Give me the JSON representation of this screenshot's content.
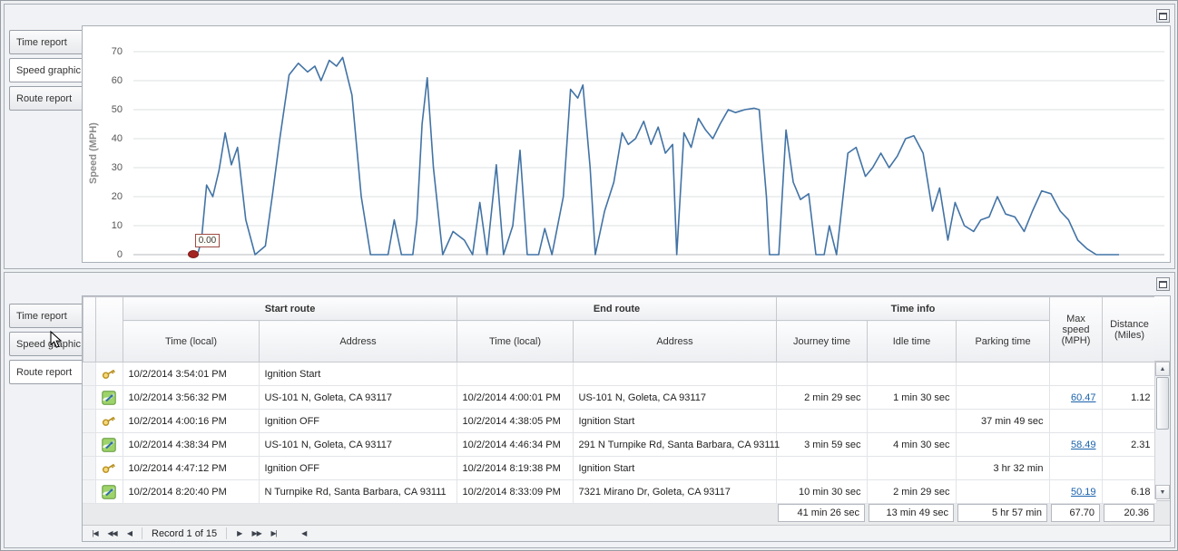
{
  "panels": {
    "top": {
      "tabs": [
        {
          "label": "Time report",
          "active": false
        },
        {
          "label": "Speed graphic",
          "active": true
        },
        {
          "label": "Route report",
          "active": false
        }
      ]
    },
    "bottom": {
      "tabs": [
        {
          "label": "Time report",
          "active": false
        },
        {
          "label": "Speed graphic",
          "active": false
        },
        {
          "label": "Route report",
          "active": true
        }
      ]
    }
  },
  "chart_data": {
    "type": "line",
    "title": "",
    "xlabel": "",
    "ylabel": "Speed (MPH)",
    "ylim": [
      0,
      70
    ],
    "yticks": [
      0,
      10,
      20,
      30,
      40,
      50,
      60,
      70
    ],
    "x_axis_visible": false,
    "grid": true,
    "legend": "none",
    "line_color": "#4273a5",
    "marker_color": "#a32421",
    "annotation": {
      "text": "0.00",
      "x": 5.7,
      "y": 0
    },
    "points": [
      [
        5.7,
        0
      ],
      [
        6.3,
        1
      ],
      [
        6.6,
        5
      ],
      [
        7.1,
        24
      ],
      [
        7.7,
        20
      ],
      [
        8.3,
        29
      ],
      [
        8.9,
        42
      ],
      [
        9.5,
        31
      ],
      [
        10.1,
        37
      ],
      [
        10.9,
        12
      ],
      [
        11.8,
        0
      ],
      [
        12.8,
        3
      ],
      [
        13.5,
        21
      ],
      [
        14.2,
        40
      ],
      [
        15.1,
        62
      ],
      [
        16.0,
        66
      ],
      [
        16.9,
        63
      ],
      [
        17.6,
        65
      ],
      [
        18.2,
        60
      ],
      [
        19.0,
        67
      ],
      [
        19.7,
        65
      ],
      [
        20.3,
        68
      ],
      [
        21.2,
        55
      ],
      [
        22.1,
        20
      ],
      [
        23.0,
        0
      ],
      [
        24.7,
        0
      ],
      [
        25.3,
        12
      ],
      [
        26.0,
        0
      ],
      [
        27.1,
        0
      ],
      [
        27.5,
        12
      ],
      [
        28.0,
        45
      ],
      [
        28.5,
        61
      ],
      [
        29.1,
        30
      ],
      [
        30.0,
        0
      ],
      [
        31.0,
        8
      ],
      [
        32.1,
        5
      ],
      [
        32.9,
        0
      ],
      [
        33.6,
        18
      ],
      [
        34.3,
        0
      ],
      [
        35.2,
        31
      ],
      [
        35.9,
        0
      ],
      [
        36.8,
        10
      ],
      [
        37.5,
        36
      ],
      [
        38.2,
        0
      ],
      [
        39.3,
        0
      ],
      [
        39.9,
        9
      ],
      [
        40.6,
        0
      ],
      [
        41.7,
        20
      ],
      [
        42.4,
        57
      ],
      [
        43.1,
        54
      ],
      [
        43.6,
        58.5
      ],
      [
        44.3,
        30
      ],
      [
        44.8,
        0
      ],
      [
        45.7,
        15
      ],
      [
        46.6,
        25
      ],
      [
        47.4,
        42
      ],
      [
        48.0,
        38
      ],
      [
        48.7,
        40
      ],
      [
        49.5,
        46
      ],
      [
        50.2,
        38
      ],
      [
        50.9,
        44
      ],
      [
        51.6,
        35
      ],
      [
        52.3,
        38
      ],
      [
        52.7,
        0
      ],
      [
        53.4,
        42
      ],
      [
        54.1,
        37
      ],
      [
        54.8,
        47
      ],
      [
        55.5,
        43
      ],
      [
        56.2,
        40
      ],
      [
        56.9,
        45
      ],
      [
        57.7,
        50
      ],
      [
        58.4,
        49
      ],
      [
        59.3,
        50
      ],
      [
        60.2,
        50.5
      ],
      [
        60.7,
        50
      ],
      [
        61.4,
        20
      ],
      [
        61.7,
        0
      ],
      [
        62.6,
        0
      ],
      [
        63.3,
        43
      ],
      [
        64.0,
        25
      ],
      [
        64.7,
        19
      ],
      [
        65.5,
        21
      ],
      [
        66.2,
        0
      ],
      [
        67.0,
        0
      ],
      [
        67.5,
        10
      ],
      [
        68.2,
        0
      ],
      [
        69.3,
        35
      ],
      [
        70.1,
        37
      ],
      [
        71.0,
        27
      ],
      [
        71.7,
        30
      ],
      [
        72.5,
        35
      ],
      [
        73.3,
        30
      ],
      [
        74.1,
        34
      ],
      [
        74.9,
        40
      ],
      [
        75.7,
        41
      ],
      [
        76.6,
        35
      ],
      [
        77.5,
        15
      ],
      [
        78.2,
        23
      ],
      [
        79.0,
        5
      ],
      [
        79.7,
        18
      ],
      [
        80.6,
        10
      ],
      [
        81.5,
        8
      ],
      [
        82.2,
        12
      ],
      [
        83.0,
        13
      ],
      [
        83.8,
        20
      ],
      [
        84.6,
        14
      ],
      [
        85.5,
        13
      ],
      [
        86.4,
        8
      ],
      [
        87.2,
        15
      ],
      [
        88.1,
        22
      ],
      [
        89.0,
        21
      ],
      [
        89.9,
        15
      ],
      [
        90.7,
        12
      ],
      [
        91.6,
        5
      ],
      [
        92.5,
        2
      ],
      [
        93.4,
        0
      ],
      [
        95.6,
        0
      ]
    ]
  },
  "table": {
    "groups": [
      {
        "label": "Start route"
      },
      {
        "label": "End route"
      },
      {
        "label": "Time info"
      }
    ],
    "columns": {
      "start_time": "Time (local)",
      "start_address": "Address",
      "end_time": "Time (local)",
      "end_address": "Address",
      "journey": "Journey time",
      "idle": "Idle time",
      "parking": "Parking time",
      "max_speed": "Max speed (MPH)",
      "distance": "Distance (Miles)"
    },
    "rows": [
      {
        "icon": "key",
        "start_time": "10/2/2014 3:54:01 PM",
        "start_address": "Ignition Start",
        "end_time": "",
        "end_address": "",
        "journey_time": "",
        "idle_time": "",
        "parking_time": "",
        "max_speed": "",
        "distance": ""
      },
      {
        "icon": "route",
        "start_time": "10/2/2014 3:56:32 PM",
        "start_address": "US-101 N, Goleta, CA 93117",
        "end_time": "10/2/2014 4:00:01 PM",
        "end_address": "US-101 N, Goleta, CA 93117",
        "journey_time": "2 min 29 sec",
        "idle_time": "1 min 30 sec",
        "parking_time": "",
        "max_speed": "60.47",
        "distance": "1.12"
      },
      {
        "icon": "key",
        "start_time": "10/2/2014 4:00:16 PM",
        "start_address": "Ignition OFF",
        "end_time": "10/2/2014 4:38:05 PM",
        "end_address": "Ignition Start",
        "journey_time": "",
        "idle_time": "",
        "parking_time": "37 min 49 sec",
        "max_speed": "",
        "distance": ""
      },
      {
        "icon": "route",
        "start_time": "10/2/2014 4:38:34 PM",
        "start_address": "US-101 N, Goleta, CA 93117",
        "end_time": "10/2/2014 4:46:34 PM",
        "end_address": "291 N Turnpike Rd, Santa Barbara, CA 93111",
        "journey_time": "3 min 59 sec",
        "idle_time": "4 min 30 sec",
        "parking_time": "",
        "max_speed": "58.49",
        "distance": "2.31"
      },
      {
        "icon": "key",
        "start_time": "10/2/2014 4:47:12 PM",
        "start_address": "Ignition OFF",
        "end_time": "10/2/2014 8:19:38 PM",
        "end_address": "Ignition Start",
        "journey_time": "",
        "idle_time": "",
        "parking_time": "3 hr 32 min",
        "max_speed": "",
        "distance": ""
      },
      {
        "icon": "route",
        "start_time": "10/2/2014 8:20:40 PM",
        "start_address": "N Turnpike Rd, Santa Barbara, CA 93111",
        "end_time": "10/2/2014 8:33:09 PM",
        "end_address": "7321 Mirano Dr, Goleta, CA 93117",
        "journey_time": "10 min 30 sec",
        "idle_time": "2 min 29 sec",
        "parking_time": "",
        "max_speed": "50.19",
        "distance": "6.18"
      }
    ],
    "summary": {
      "journey": "41 min 26 sec",
      "idle": "13 min 49 sec",
      "parking": "5 hr 57 min",
      "max_speed": "67.70",
      "distance": "20.36"
    },
    "pager": {
      "first": "|◀",
      "prev_page": "◀◀",
      "prev": "◀",
      "record_text": "Record 1 of 15",
      "next": "▶",
      "next_page": "▶▶",
      "last": "▶|",
      "hscroll_left": "◀"
    },
    "scrollbar": {
      "up": "▲",
      "down": "▼"
    }
  }
}
